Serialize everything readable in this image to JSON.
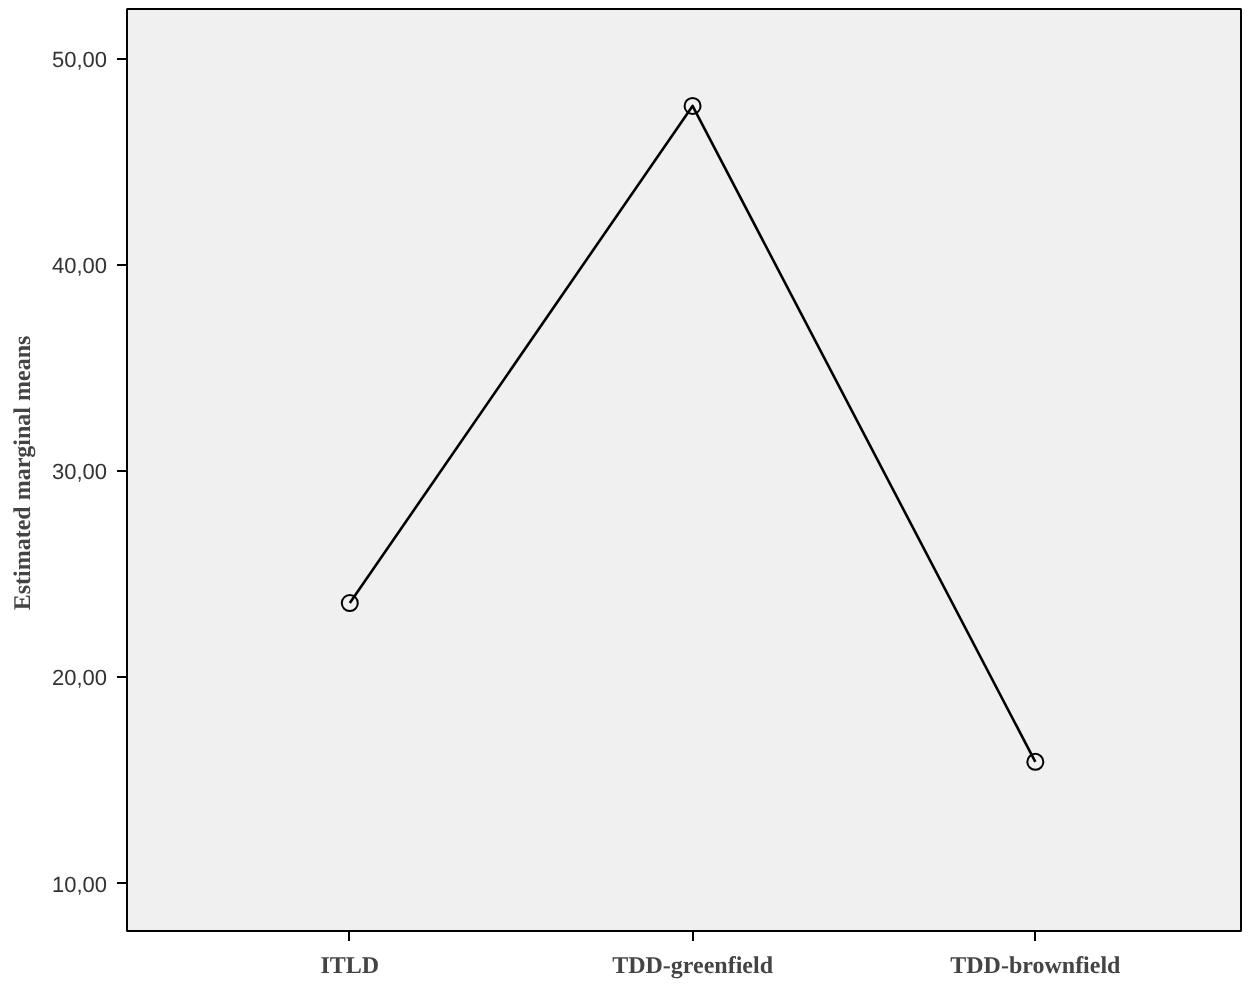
{
  "chart_data": {
    "type": "line",
    "ylabel": "Estimated marginal  means",
    "categories": [
      "ITLD",
      "TDD-greenfield",
      "TDD-brownfield"
    ],
    "series": [
      {
        "color": "#000000",
        "values": [
          23.6,
          47.7,
          15.9
        ]
      }
    ],
    "ylim": [
      7.7,
      52.4
    ],
    "yticks": [
      {
        "value": 10,
        "label": "10,00"
      },
      {
        "value": 20,
        "label": "20,00"
      },
      {
        "value": 30,
        "label": "30,00"
      },
      {
        "value": 40,
        "label": "40,00"
      },
      {
        "value": 50,
        "label": "50,00"
      }
    ],
    "grid": false,
    "marker": "circle",
    "line_style": "solid"
  }
}
